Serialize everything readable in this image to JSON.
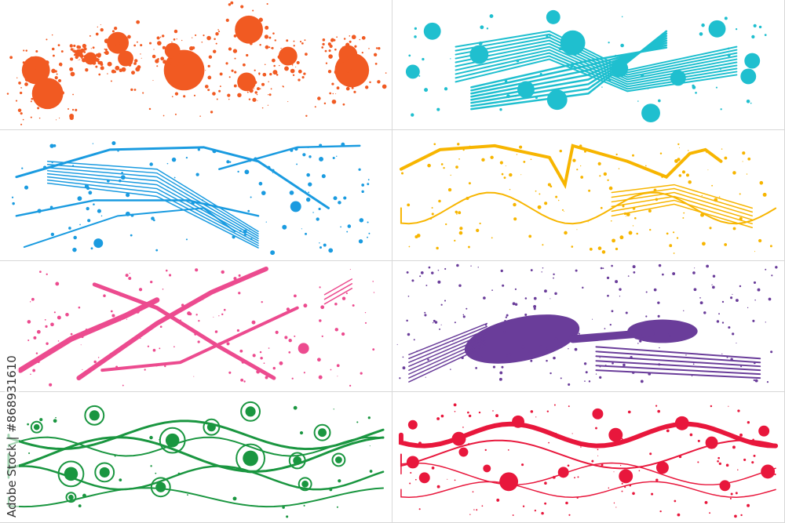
{
  "panels": [
    {
      "style": "splatter-blobs",
      "color": "#f15a22"
    },
    {
      "style": "brush-strokes-dots",
      "color": "#1fbfcf"
    },
    {
      "style": "dripping-lines",
      "color": "#1a9be0"
    },
    {
      "style": "wavy-brush-lines",
      "color": "#f7b500"
    },
    {
      "style": "crossed-brush-strokes",
      "color": "#ec4b8f"
    },
    {
      "style": "ink-splash",
      "color": "#6a3d9a"
    },
    {
      "style": "waves-with-spirals",
      "color": "#1a9640"
    },
    {
      "style": "waves-with-dots",
      "color": "#e8173c"
    }
  ],
  "watermark": "Adobe Stock | #868931610"
}
